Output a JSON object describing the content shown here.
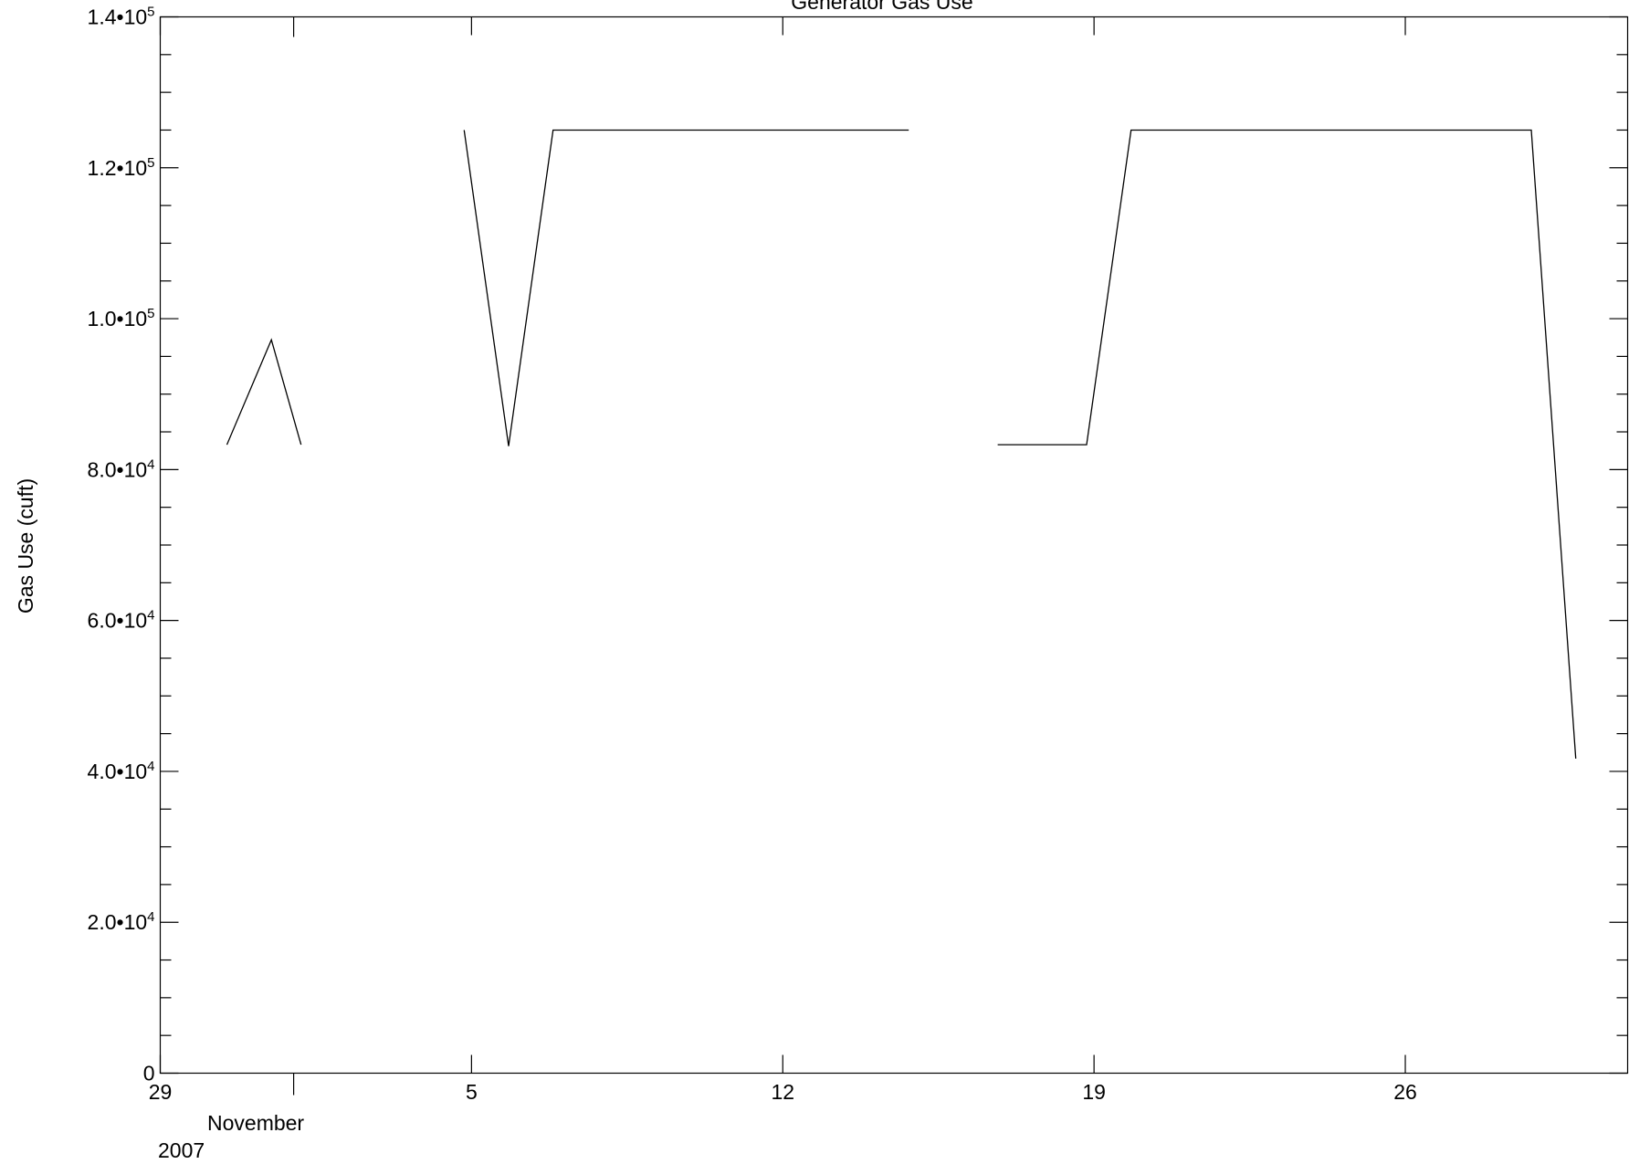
{
  "chart_data": {
    "type": "line",
    "title": "Generator Gas Use",
    "xlabel": "",
    "ylabel": "Gas Use (cuft)",
    "x_month_label": "November",
    "x_year_label": "2007",
    "xlim": [
      "2007-10-29",
      "2007-12-01"
    ],
    "ylim": [
      0,
      140000
    ],
    "grid": false,
    "x_ticks": [
      {
        "date": "2007-10-29",
        "label": "29"
      },
      {
        "date": "2007-11-05",
        "label": "5"
      },
      {
        "date": "2007-11-12",
        "label": "12"
      },
      {
        "date": "2007-11-19",
        "label": "19"
      },
      {
        "date": "2007-11-26",
        "label": "26"
      }
    ],
    "y_ticks": [
      {
        "value": 0,
        "mantissa": "0",
        "exponent": ""
      },
      {
        "value": 20000,
        "mantissa": "2.0•10",
        "exponent": "4"
      },
      {
        "value": 40000,
        "mantissa": "4.0•10",
        "exponent": "4"
      },
      {
        "value": 60000,
        "mantissa": "6.0•10",
        "exponent": "4"
      },
      {
        "value": 80000,
        "mantissa": "8.0•10",
        "exponent": "4"
      },
      {
        "value": 100000,
        "mantissa": "1.0•10",
        "exponent": "5"
      },
      {
        "value": 120000,
        "mantissa": "1.2•10",
        "exponent": "5"
      },
      {
        "value": 140000,
        "mantissa": "1.4•10",
        "exponent": "5"
      }
    ],
    "series": [
      {
        "segments": [
          [
            {
              "x": "2007-10-30T12:00",
              "y": 83300
            },
            {
              "x": "2007-10-31T12:00",
              "y": 97200
            },
            {
              "x": "2007-11-01T04:00",
              "y": 83300
            }
          ],
          [
            {
              "x": "2007-11-04T20:00",
              "y": 125000
            },
            {
              "x": "2007-11-05T20:00",
              "y": 83100
            },
            {
              "x": "2007-11-06T20:00",
              "y": 125000
            },
            {
              "x": "2007-11-14T20:00",
              "y": 125000
            }
          ],
          [
            {
              "x": "2007-11-16T20:00",
              "y": 83300
            },
            {
              "x": "2007-11-18T20:00",
              "y": 83300
            },
            {
              "x": "2007-11-19T20:00",
              "y": 125000
            },
            {
              "x": "2007-11-28T20:00",
              "y": 125000
            },
            {
              "x": "2007-11-29T20:00",
              "y": 41700
            }
          ]
        ]
      }
    ]
  }
}
